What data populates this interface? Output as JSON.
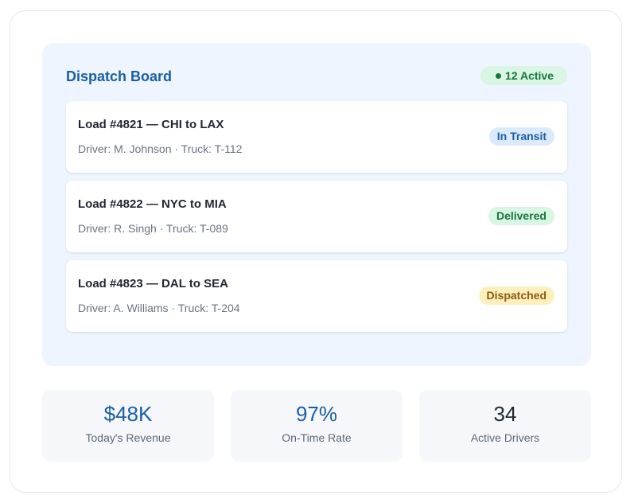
{
  "board": {
    "title": "Dispatch Board",
    "active_badge": "12 Active"
  },
  "loads": [
    {
      "title": "Load #4821 — CHI to LAX",
      "details": "Driver: M. Johnson · Truck: T-112",
      "status": "In Transit"
    },
    {
      "title": "Load #4822 — NYC to MIA",
      "details": "Driver: R. Singh · Truck: T-089",
      "status": "Delivered"
    },
    {
      "title": "Load #4823 — DAL to SEA",
      "details": "Driver: A. Williams · Truck: T-204",
      "status": "Dispatched"
    }
  ],
  "stats": [
    {
      "value": "$48K",
      "label": "Today's Revenue",
      "color": "#1a5fa6"
    },
    {
      "value": "97%",
      "label": "On-Time Rate",
      "color": "#1a5fa6"
    },
    {
      "value": "34",
      "label": "Active Drivers",
      "color": "#1f2733"
    }
  ],
  "colors": {
    "accent": "#1a5fa6",
    "success": "#16773c",
    "warning": "#8a5a0d",
    "board_bg": "#eef5fe"
  }
}
